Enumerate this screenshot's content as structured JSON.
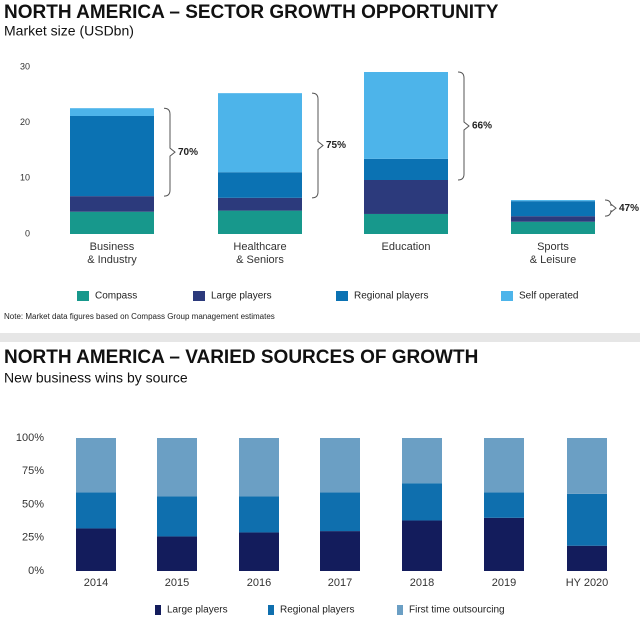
{
  "chart_data": [
    {
      "type": "stacked-bar",
      "title": "NORTH AMERICA – SECTOR GROWTH OPPORTUNITY",
      "subtitle": "Market size (USDbn)",
      "categories": [
        "Business\n& Industry",
        "Healthcare\n& Seniors",
        "Education",
        "Sports\n& Leisure"
      ],
      "series": [
        {
          "name": "Compass",
          "color": "#17988c",
          "values": [
            4,
            4.2,
            3.6,
            2.2
          ]
        },
        {
          "name": "Large players",
          "color": "#2c3a7c",
          "values": [
            2.8,
            2.3,
            6.1,
            1.0
          ]
        },
        {
          "name": "Regional players",
          "color": "#0b72b3",
          "values": [
            14.4,
            4.6,
            3.8,
            2.7
          ]
        },
        {
          "name": "Self operated",
          "color": "#4db4ea",
          "values": [
            1.4,
            14.2,
            15.6,
            0.2
          ]
        }
      ],
      "annotations": [
        "70%",
        "75%",
        "66%",
        "47%"
      ],
      "ylim": [
        0,
        30
      ],
      "yticks": [
        0,
        10,
        20,
        30
      ],
      "grid": false,
      "note": "Note: Market data figures based on Compass Group management estimates"
    },
    {
      "type": "stacked-bar",
      "title": "NORTH AMERICA – VARIED SOURCES OF GROWTH",
      "subtitle": "New business wins by source",
      "categories": [
        "2014",
        "2015",
        "2016",
        "2017",
        "2018",
        "2019",
        "HY 2020"
      ],
      "series": [
        {
          "name": "Large players",
          "color": "#131c5c",
          "values": [
            32,
            26,
            29,
            30,
            38,
            40,
            19
          ]
        },
        {
          "name": "Regional players",
          "color": "#0f6fae",
          "values": [
            27,
            30,
            27,
            29,
            28,
            19,
            39
          ]
        },
        {
          "name": "First time outsourcing",
          "color": "#6b9fc4",
          "values": [
            41,
            44,
            44,
            41,
            34,
            41,
            42
          ]
        }
      ],
      "ylim": [
        0,
        100
      ],
      "yticks": [
        {
          "value": 0,
          "label": "0%"
        },
        {
          "value": 25,
          "label": "25%"
        },
        {
          "value": 50,
          "label": "50%"
        },
        {
          "value": 75,
          "label": "75%"
        },
        {
          "value": 100,
          "label": "100%"
        }
      ],
      "grid": false
    }
  ]
}
